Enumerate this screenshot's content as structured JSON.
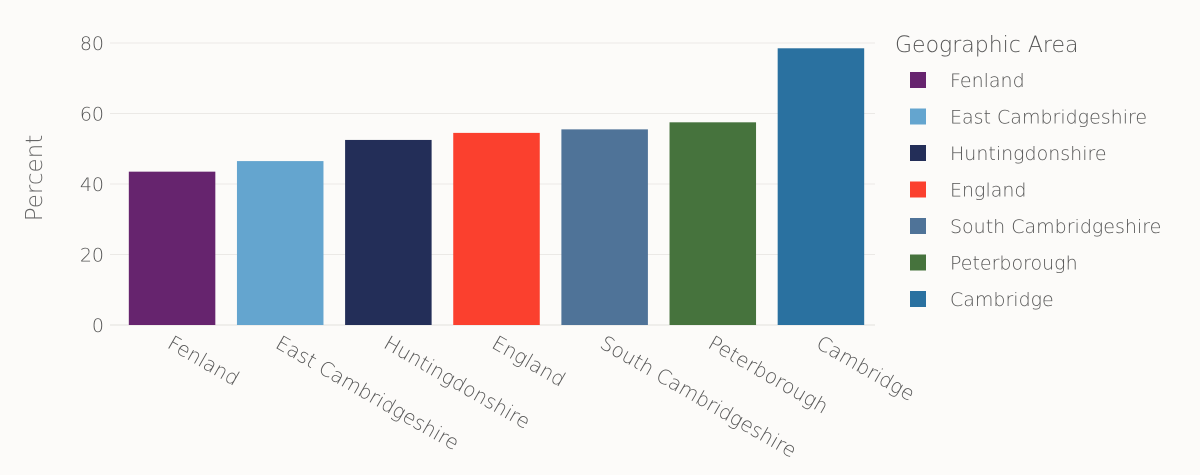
{
  "chart_data": {
    "type": "bar",
    "title": "",
    "xlabel": "",
    "ylabel": "Percent",
    "ylim": [
      0,
      80
    ],
    "yticks": [
      0,
      20,
      40,
      60,
      80
    ],
    "grid": true,
    "legend_title": "Geographic Area",
    "legend_position": "right",
    "categories": [
      "Fenland",
      "East Cambridgeshire",
      "Huntingdonshire",
      "England",
      "South Cambridgeshire",
      "Peterborough",
      "Cambridge"
    ],
    "values": [
      43.5,
      46.5,
      52.5,
      54.5,
      55.5,
      57.5,
      78.5
    ],
    "colors": [
      "#66246e",
      "#64a5cf",
      "#232e58",
      "#fb402e",
      "#4f7398",
      "#46733d",
      "#2a71a0"
    ]
  }
}
